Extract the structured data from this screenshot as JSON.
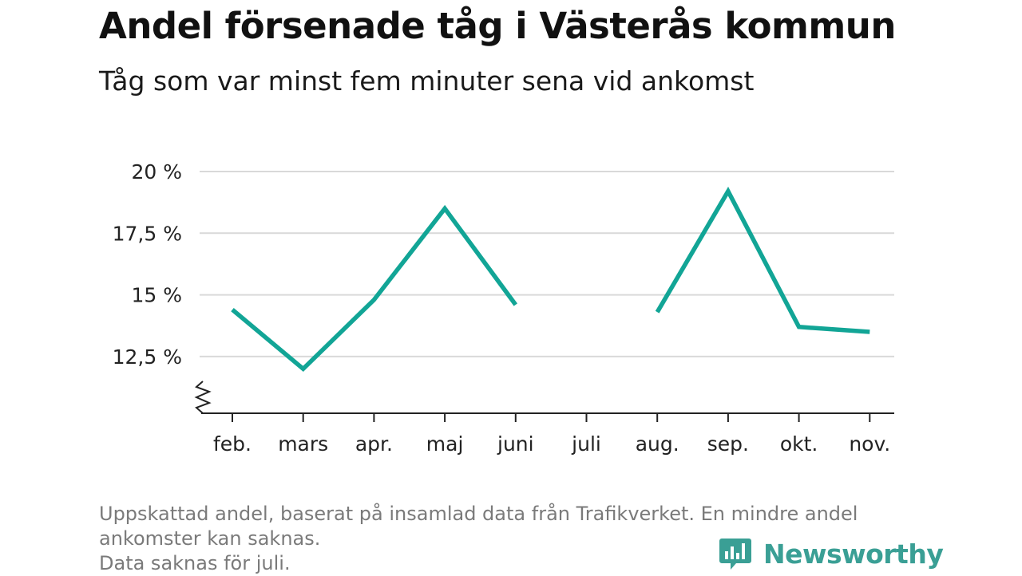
{
  "title": "Andel försenade tåg i Västerås kommun",
  "subtitle": "Tåg som var minst fem minuter sena vid ankomst",
  "footnote": {
    "line1": "Uppskattad andel, baserat på insamlad data från Trafikverket. En mindre andel",
    "line2": "ankomster kan saknas.",
    "line3": "Data saknas för juli."
  },
  "logo": {
    "text": "Newsworthy",
    "icon": "bar-chart-speech-bubble-icon",
    "color": "#3a9f95"
  },
  "chart_data": {
    "type": "line",
    "categories": [
      "feb.",
      "mars",
      "apr.",
      "maj",
      "juni",
      "juli",
      "aug.",
      "sep.",
      "okt.",
      "nov."
    ],
    "series": [
      {
        "values": [
          14.4,
          12.0,
          14.8,
          18.5,
          14.6,
          null,
          14.3,
          19.2,
          13.7,
          13.5
        ],
        "color": "#12a596"
      }
    ],
    "yticks": [
      12.5,
      15,
      17.5,
      20
    ],
    "ytick_labels": [
      "12,5 %",
      "15 %",
      "17,5 %",
      "20 %"
    ],
    "ylim": [
      10.2,
      20
    ],
    "y_axis_break": true,
    "grid": true,
    "xlabel": "",
    "ylabel": ""
  }
}
